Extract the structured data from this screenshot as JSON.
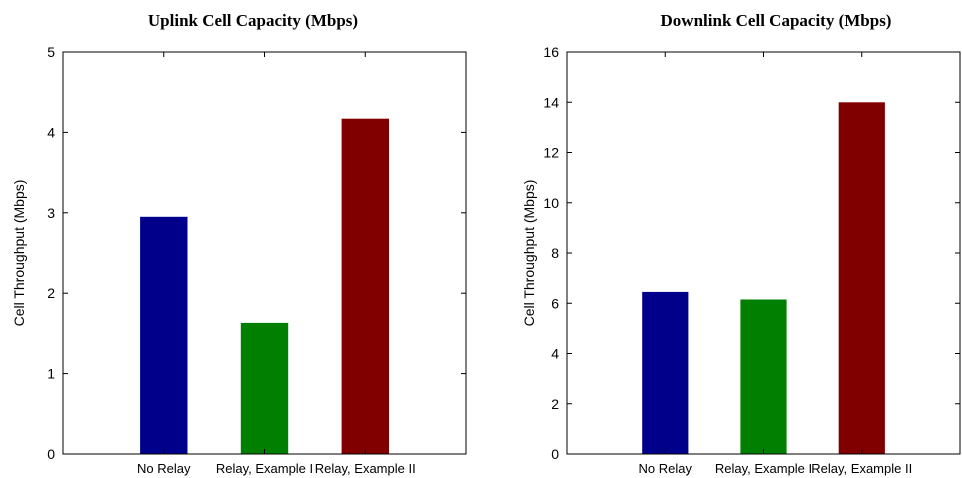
{
  "chart_data": [
    {
      "type": "bar",
      "title": "Uplink Cell Capacity (Mbps)",
      "ylabel": "Cell Throughput (Mbps)",
      "xlabel": "",
      "categories": [
        "No Relay",
        "Relay, Example I",
        "Relay, Example II"
      ],
      "values": [
        2.95,
        1.63,
        4.17
      ],
      "colors": [
        "#00008b",
        "#007f00",
        "#800000"
      ],
      "ylim": [
        0,
        5
      ],
      "yticks": [
        "0",
        "1",
        "2",
        "3",
        "4",
        "5"
      ],
      "grid": false,
      "legend": "none"
    },
    {
      "type": "bar",
      "title": "Downlink Cell Capacity (Mbps)",
      "ylabel": "Cell Throughput (Mbps)",
      "xlabel": "",
      "categories": [
        "No Relay",
        "Relay, Example I",
        "Relay, Example II"
      ],
      "values": [
        6.45,
        6.15,
        14.0
      ],
      "colors": [
        "#00008b",
        "#007f00",
        "#800000"
      ],
      "ylim": [
        0,
        16
      ],
      "yticks": [
        "0",
        "2",
        "4",
        "6",
        "8",
        "10",
        "12",
        "14",
        "16"
      ],
      "grid": false,
      "legend": "none"
    }
  ]
}
